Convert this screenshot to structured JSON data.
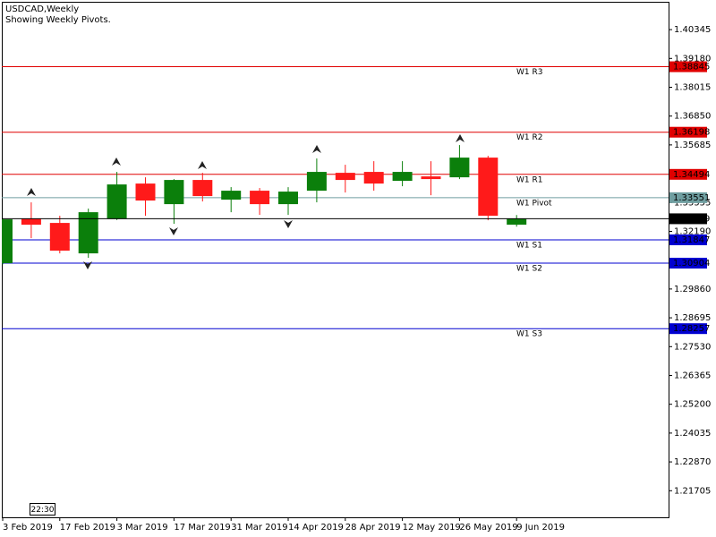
{
  "chart_data": {
    "type": "candlestick",
    "title": "USDCAD,Weekly",
    "subtitle": "Showing Weekly Pivots.",
    "time_label": "22:30",
    "categories": [
      "3 Feb 2019",
      null,
      "17 Feb 2019",
      null,
      "3 Mar 2019",
      null,
      "17 Mar 2019",
      null,
      "31 Mar 2019",
      null,
      "14 Apr 2019",
      null,
      "28 Apr 2019",
      null,
      "12 May 2019",
      null,
      "26 May 2019",
      null,
      "9 Jun 2019"
    ],
    "open": [
      1.30902,
      1.32711,
      1.3253,
      1.313,
      1.32711,
      1.34122,
      1.3329,
      1.34267,
      1.33471,
      1.33833,
      1.3329,
      1.33833,
      1.34556,
      1.34593,
      1.34231,
      1.34412,
      1.34375,
      1.35171,
      1.3246
    ],
    "high": [
      1.327,
      1.33362,
      1.3282,
      1.33109,
      1.34593,
      1.34375,
      1.34303,
      1.34556,
      1.33978,
      1.33942,
      1.33978,
      1.35135,
      1.34882,
      1.35027,
      1.35027,
      1.35027,
      1.35678,
      1.35243,
      1.3285
    ],
    "low": [
      1.3085,
      1.31915,
      1.313,
      1.31119,
      1.3265,
      1.3282,
      1.32494,
      1.33399,
      1.32964,
      1.32856,
      1.32856,
      1.33363,
      1.3376,
      1.33833,
      1.34014,
      1.33652,
      1.34303,
      1.32639,
      1.3238
    ],
    "close": [
      1.32675,
      1.32458,
      1.31409,
      1.32964,
      1.34086,
      1.33435,
      1.34267,
      1.33616,
      1.33833,
      1.3329,
      1.33797,
      1.34593,
      1.34267,
      1.34122,
      1.34593,
      1.34303,
      1.35171,
      1.3282,
      1.32699
    ],
    "up_color": "#0b7f0b",
    "down_color": "#ff1a1a",
    "levels": [
      {
        "name": "W1 R3",
        "value": 1.38845,
        "color": "#e00000"
      },
      {
        "name": "W1 R2",
        "value": 1.36198,
        "color": "#e00000"
      },
      {
        "name": "W1 R1",
        "value": 1.34494,
        "color": "#e00000"
      },
      {
        "name": "W1 Pivot",
        "value": 1.33551,
        "color": "#6f9ea0"
      },
      {
        "name": "W1 S1",
        "value": 1.31847,
        "color": "#0000d0"
      },
      {
        "name": "W1 S2",
        "value": 1.30904,
        "color": "#0000d0"
      },
      {
        "name": "W1 S3",
        "value": 1.28257,
        "color": "#0000d0"
      }
    ],
    "current_price": 1.32699,
    "ylim": [
      1.2063,
      1.4147
    ],
    "yticks": [
      1.40345,
      {
        "value": 1.3918,
        "label": "1.39180"
      },
      1.38015,
      {
        "value": 1.3685,
        "label": "1.36850"
      },
      1.35685,
      1.33355,
      {
        "value": 1.3219,
        "label": "1.32190"
      },
      {
        "value": 1.2986,
        "label": "1.29860"
      },
      1.28695,
      {
        "value": 1.2753,
        "label": "1.27530"
      },
      1.26365,
      {
        "value": 1.252,
        "label": "1.25200"
      },
      1.24035,
      {
        "value": 1.2287,
        "label": "1.22870"
      },
      1.21705
    ]
  }
}
